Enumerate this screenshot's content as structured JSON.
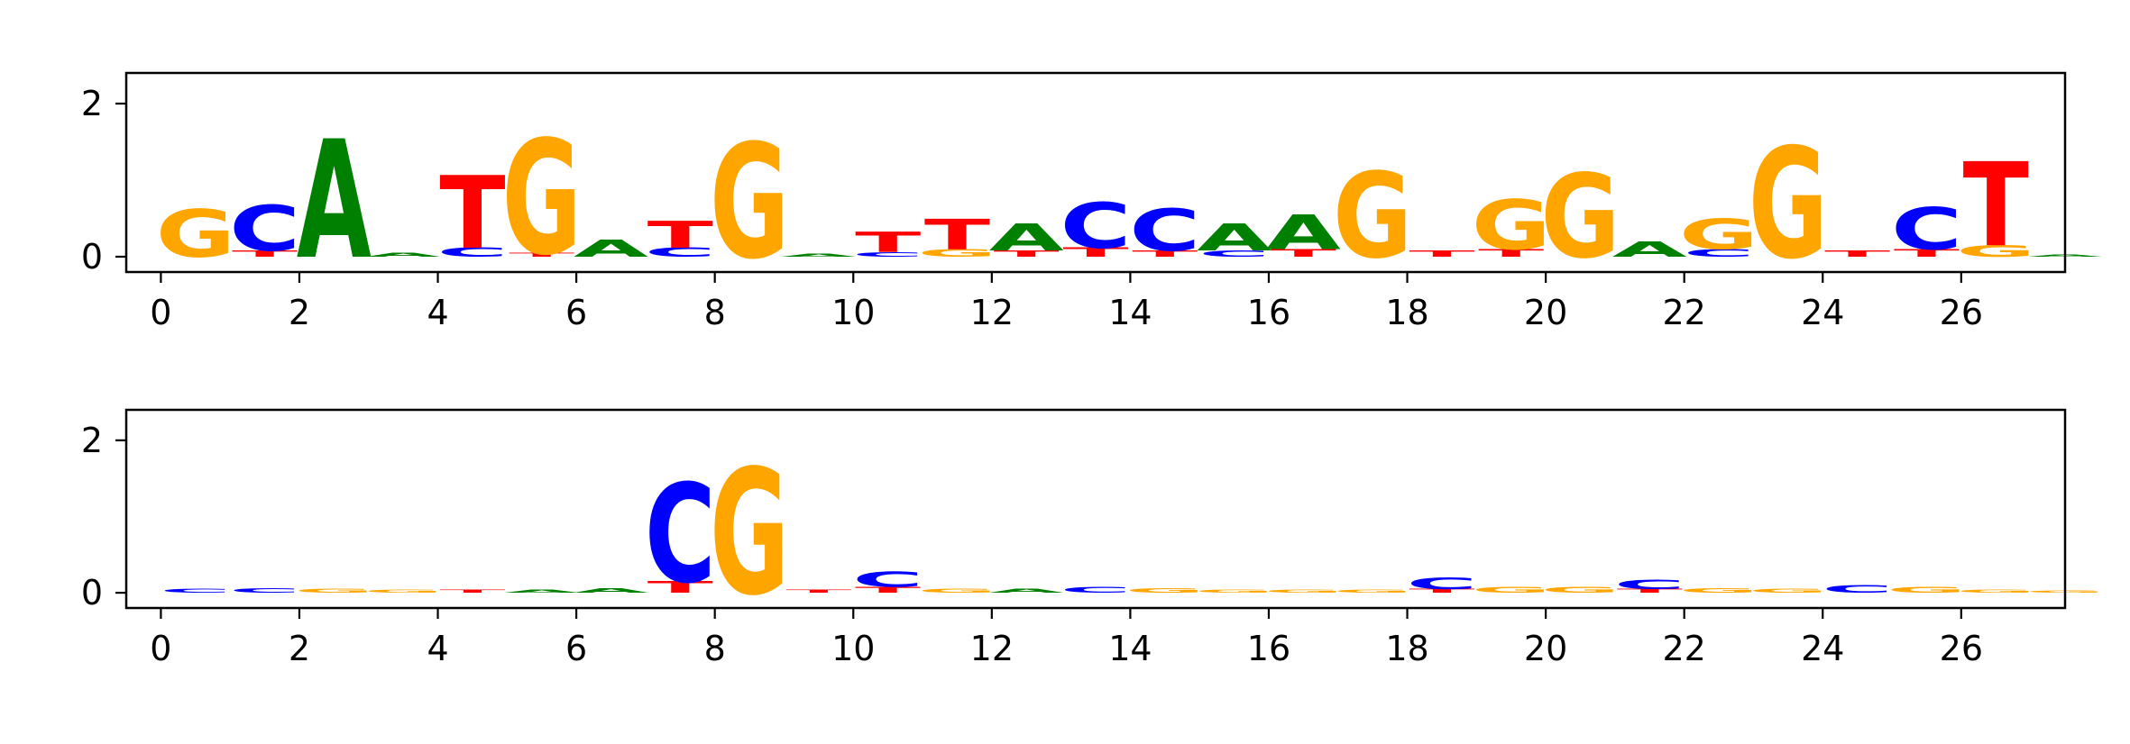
{
  "colors": {
    "A": "#008000",
    "C": "#0000ff",
    "G": "#ffa500",
    "T": "#ff0000",
    "axes": "#000000",
    "background": "#ffffff"
  },
  "chart_data": [
    {
      "type": "sequence-logo",
      "title": "",
      "xlabel": "",
      "ylabel": "",
      "xlim": [
        -0.5,
        27.5
      ],
      "ylim": [
        -0.2,
        2.4
      ],
      "xticks": [
        0,
        2,
        4,
        6,
        8,
        10,
        12,
        14,
        16,
        18,
        20,
        22,
        24,
        26
      ],
      "yticks": [
        0,
        2
      ],
      "positions": [
        [
          {
            "b": "G",
            "h": 0.62
          }
        ],
        [
          {
            "b": "C",
            "h": 0.6
          },
          {
            "b": "T",
            "h": 0.08
          }
        ],
        [
          {
            "b": "A",
            "h": 1.55
          }
        ],
        [
          {
            "b": "A",
            "h": 0.05
          }
        ],
        [
          {
            "b": "T",
            "h": 0.95
          },
          {
            "b": "C",
            "h": 0.12
          }
        ],
        [
          {
            "b": "G",
            "h": 1.5
          },
          {
            "b": "T",
            "h": 0.05
          }
        ],
        [
          {
            "b": "A",
            "h": 0.22
          }
        ],
        [
          {
            "b": "T",
            "h": 0.35
          },
          {
            "b": "C",
            "h": 0.12
          }
        ],
        [
          {
            "b": "G",
            "h": 1.5
          }
        ],
        [
          {
            "b": "A",
            "h": 0.04
          }
        ],
        [
          {
            "b": "T",
            "h": 0.27
          },
          {
            "b": "C",
            "h": 0.06
          }
        ],
        [
          {
            "b": "T",
            "h": 0.4
          },
          {
            "b": "G",
            "h": 0.1
          }
        ],
        [
          {
            "b": "A",
            "h": 0.35
          },
          {
            "b": "T",
            "h": 0.08
          }
        ],
        [
          {
            "b": "C",
            "h": 0.6
          },
          {
            "b": "T",
            "h": 0.12
          }
        ],
        [
          {
            "b": "C",
            "h": 0.55
          },
          {
            "b": "T",
            "h": 0.08
          }
        ],
        [
          {
            "b": "A",
            "h": 0.35
          },
          {
            "b": "C",
            "h": 0.08
          }
        ],
        [
          {
            "b": "A",
            "h": 0.45
          },
          {
            "b": "T",
            "h": 0.1
          }
        ],
        [
          {
            "b": "G",
            "h": 1.12
          }
        ],
        [
          {
            "b": "T",
            "h": 0.08
          }
        ],
        [
          {
            "b": "G",
            "h": 0.65
          },
          {
            "b": "T",
            "h": 0.1
          }
        ],
        [
          {
            "b": "G",
            "h": 1.1
          }
        ],
        [
          {
            "b": "A",
            "h": 0.2
          }
        ],
        [
          {
            "b": "G",
            "h": 0.4
          },
          {
            "b": "C",
            "h": 0.1
          }
        ],
        [
          {
            "b": "G",
            "h": 1.45
          }
        ],
        [
          {
            "b": "T",
            "h": 0.08
          }
        ],
        [
          {
            "b": "C",
            "h": 0.55
          },
          {
            "b": "T",
            "h": 0.1
          }
        ],
        [
          {
            "b": "T",
            "h": 1.1
          },
          {
            "b": "G",
            "h": 0.15
          }
        ],
        [
          {
            "b": "A",
            "h": 0.03
          }
        ]
      ]
    },
    {
      "type": "sequence-logo",
      "title": "",
      "xlabel": "",
      "ylabel": "",
      "xlim": [
        -0.5,
        27.5
      ],
      "ylim": [
        -0.2,
        2.4
      ],
      "xticks": [
        0,
        2,
        4,
        6,
        8,
        10,
        12,
        14,
        16,
        18,
        20,
        22,
        24,
        26
      ],
      "yticks": [
        0,
        2
      ],
      "positions": [
        [
          {
            "b": "C",
            "h": 0.05
          }
        ],
        [
          {
            "b": "C",
            "h": 0.06
          }
        ],
        [
          {
            "b": "G",
            "h": 0.05
          }
        ],
        [
          {
            "b": "G",
            "h": 0.04
          }
        ],
        [
          {
            "b": "T",
            "h": 0.04
          }
        ],
        [
          {
            "b": "A",
            "h": 0.04
          }
        ],
        [
          {
            "b": "A",
            "h": 0.06
          }
        ],
        [
          {
            "b": "C",
            "h": 1.3
          },
          {
            "b": "T",
            "h": 0.15
          }
        ],
        [
          {
            "b": "G",
            "h": 1.65
          }
        ],
        [
          {
            "b": "T",
            "h": 0.04
          }
        ],
        [
          {
            "b": "C",
            "h": 0.2
          },
          {
            "b": "T",
            "h": 0.08
          }
        ],
        [
          {
            "b": "G",
            "h": 0.05
          }
        ],
        [
          {
            "b": "A",
            "h": 0.05
          }
        ],
        [
          {
            "b": "C",
            "h": 0.08
          }
        ],
        [
          {
            "b": "G",
            "h": 0.06
          }
        ],
        [
          {
            "b": "G",
            "h": 0.04
          }
        ],
        [
          {
            "b": "G",
            "h": 0.04
          }
        ],
        [
          {
            "b": "G",
            "h": 0.04
          }
        ],
        [
          {
            "b": "C",
            "h": 0.15
          },
          {
            "b": "T",
            "h": 0.05
          }
        ],
        [
          {
            "b": "G",
            "h": 0.08
          }
        ],
        [
          {
            "b": "G",
            "h": 0.08
          }
        ],
        [
          {
            "b": "C",
            "h": 0.12
          },
          {
            "b": "T",
            "h": 0.05
          }
        ],
        [
          {
            "b": "G",
            "h": 0.06
          }
        ],
        [
          {
            "b": "G",
            "h": 0.05
          }
        ],
        [
          {
            "b": "C",
            "h": 0.1
          }
        ],
        [
          {
            "b": "G",
            "h": 0.08
          }
        ],
        [
          {
            "b": "G",
            "h": 0.04
          }
        ],
        [
          {
            "b": "G",
            "h": 0.03
          }
        ]
      ]
    }
  ]
}
